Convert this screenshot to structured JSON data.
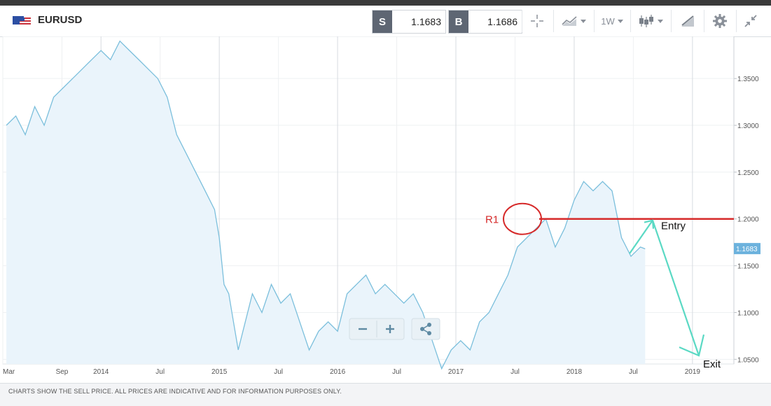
{
  "header": {
    "symbol": "EURUSD",
    "sell_label": "S",
    "sell_price": "1.1683",
    "buy_label": "B",
    "buy_price": "1.1686",
    "timeframe": "1W"
  },
  "footer": {
    "disclaimer": "CHARTS SHOW THE SELL PRICE. ALL PRICES ARE INDICATIVE AND FOR INFORMATION PURPOSES ONLY."
  },
  "chart_data": {
    "type": "area",
    "x_ticks": [
      "Mar",
      "Sep",
      "2014",
      "Jul",
      "2015",
      "Jul",
      "2016",
      "Jul",
      "2017",
      "Jul",
      "2018",
      "Jul",
      "2019"
    ],
    "y_ticks": [
      "1.3500",
      "1.3000",
      "1.2500",
      "1.2000",
      "1.1500",
      "1.1000",
      "1.0500"
    ],
    "ylim": [
      1.045,
      1.395
    ],
    "current_price_label": "1.1683",
    "current_price": 1.1683,
    "series": [
      {
        "x": [
          2013.2,
          2013.28,
          2013.36,
          2013.44,
          2013.52,
          2013.6,
          2013.68,
          2013.76,
          2013.84,
          2013.92,
          2014.0,
          2014.08,
          2014.16,
          2014.24,
          2014.32,
          2014.4,
          2014.48,
          2014.56,
          2014.64,
          2014.72,
          2014.8,
          2014.88,
          2014.96,
          2015.0,
          2015.04,
          2015.08,
          2015.12,
          2015.16,
          2015.2,
          2015.28,
          2015.36,
          2015.44,
          2015.52,
          2015.6,
          2015.68,
          2015.76,
          2015.84,
          2015.92,
          2016.0,
          2016.08,
          2016.16,
          2016.24,
          2016.32,
          2016.4,
          2016.48,
          2016.56,
          2016.64,
          2016.72,
          2016.8,
          2016.88,
          2016.96,
          2017.04,
          2017.12,
          2017.2,
          2017.28,
          2017.36,
          2017.44,
          2017.52,
          2017.6,
          2017.68,
          2017.76,
          2017.84,
          2017.92,
          2018.0,
          2018.08,
          2018.16,
          2018.24,
          2018.32,
          2018.4,
          2018.48,
          2018.56,
          2018.6
        ],
        "y": [
          1.3,
          1.31,
          1.29,
          1.32,
          1.3,
          1.33,
          1.34,
          1.35,
          1.36,
          1.37,
          1.38,
          1.37,
          1.39,
          1.38,
          1.37,
          1.36,
          1.35,
          1.33,
          1.29,
          1.27,
          1.25,
          1.23,
          1.21,
          1.18,
          1.13,
          1.12,
          1.09,
          1.06,
          1.08,
          1.12,
          1.1,
          1.13,
          1.11,
          1.12,
          1.09,
          1.06,
          1.08,
          1.09,
          1.08,
          1.12,
          1.13,
          1.14,
          1.12,
          1.13,
          1.12,
          1.11,
          1.12,
          1.1,
          1.07,
          1.04,
          1.06,
          1.07,
          1.06,
          1.09,
          1.1,
          1.12,
          1.14,
          1.17,
          1.18,
          1.19,
          1.2,
          1.17,
          1.19,
          1.22,
          1.24,
          1.23,
          1.24,
          1.23,
          1.18,
          1.16,
          1.17,
          1.168
        ],
        "color": "#7bbfdc"
      }
    ],
    "annotations": {
      "r1_label": "R1",
      "r1_level": 1.2,
      "entry_label": "Entry",
      "exit_label": "Exit",
      "level_color": "#d62a2a",
      "arrow_color": "#5ad9c4"
    }
  }
}
